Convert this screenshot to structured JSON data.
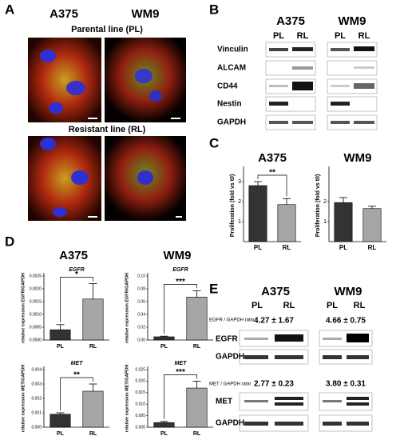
{
  "panels": {
    "A": {
      "label": "A",
      "cell_lines": [
        "A375",
        "WM9"
      ],
      "rows": [
        "Parental line (PL)",
        "Resistant line (RL)"
      ]
    },
    "B": {
      "label": "B",
      "cell_lines": [
        "A375",
        "WM9"
      ],
      "lanes": [
        "PL",
        "RL",
        "PL",
        "RL"
      ],
      "proteins": [
        "Vinculin",
        "ALCAM",
        "CD44",
        "Nestin",
        "GAPDH"
      ]
    },
    "C": {
      "label": "C"
    },
    "D": {
      "label": "D",
      "titles": [
        "A375",
        "WM9"
      ]
    },
    "E": {
      "label": "E",
      "cell_lines": [
        "A375",
        "WM9"
      ],
      "lanes": [
        "PL",
        "RL",
        "PL",
        "RL"
      ],
      "ratios": [
        {
          "label": "EGFR / GAPDH ratio",
          "values": [
            "4.27 ± 1.67",
            "4.66 ± 0.75"
          ]
        },
        {
          "label": "MET / GAPDH ratio",
          "values": [
            "2.77 ± 0.23",
            "3.80 ± 0.31"
          ]
        }
      ],
      "proteins": [
        "EGFR",
        "GAPDH",
        "MET",
        "GAPDH"
      ]
    }
  },
  "chart_data": [
    {
      "type": "bar",
      "title": "A375",
      "ylabel": "Proliferation (fold vs t0)",
      "categories": [
        "PL",
        "RL"
      ],
      "values": [
        2.8,
        1.85
      ],
      "errors": [
        0.2,
        0.3
      ],
      "colors": [
        "#333333",
        "#a6a6a6"
      ],
      "ylim": [
        0,
        3.6
      ],
      "yticks": [
        1,
        2,
        3
      ],
      "annotation": "**"
    },
    {
      "type": "bar",
      "title": "WM9",
      "ylabel": "Proliferation (fold vs t0)",
      "categories": [
        "PL",
        "RL"
      ],
      "values": [
        1.95,
        1.65
      ],
      "errors": [
        0.25,
        0.12
      ],
      "colors": [
        "#333333",
        "#a6a6a6"
      ],
      "ylim": [
        0,
        3.6
      ],
      "yticks": [
        1,
        2
      ]
    },
    {
      "type": "bar",
      "title": "EGFR",
      "ylabel": "relative expression EGFR/GAPDH",
      "categories": [
        "PL",
        "RL"
      ],
      "values": [
        0.0004,
        0.0016
      ],
      "errors": [
        0.0002,
        0.0006
      ],
      "colors": [
        "#333333",
        "#a6a6a6"
      ],
      "ylim": [
        0,
        0.0025
      ],
      "yticks": [
        {
          "value": 0,
          "label": "0.0000"
        },
        {
          "value": 0.0005,
          "label": "0.0005"
        },
        {
          "value": 0.001,
          "label": "0.0010"
        },
        {
          "value": 0.0015,
          "label": "0.0015"
        },
        {
          "value": 0.002,
          "label": "0.0020"
        },
        {
          "value": 0.0025,
          "label": "0.0025"
        }
      ],
      "annotation": "*"
    },
    {
      "type": "bar",
      "title": "EGFR",
      "ylabel": "relative expression EGFR/GAPDH",
      "categories": [
        "PL",
        "RL"
      ],
      "values": [
        0.005,
        0.067
      ],
      "errors": [
        0.001,
        0.01
      ],
      "colors": [
        "#333333",
        "#a6a6a6"
      ],
      "ylim": [
        0,
        0.1
      ],
      "yticks": [
        {
          "value": 0,
          "label": "0.00"
        },
        {
          "value": 0.02,
          "label": "0.02"
        },
        {
          "value": 0.04,
          "label": "0.04"
        },
        {
          "value": 0.06,
          "label": "0.06"
        },
        {
          "value": 0.08,
          "label": "0.08"
        },
        {
          "value": 0.1,
          "label": "0.10"
        }
      ],
      "annotation": "***"
    },
    {
      "type": "bar",
      "title": "MET",
      "ylabel": "relative expression MET/GAPDH",
      "categories": [
        "PL",
        "RL"
      ],
      "values": [
        0.0009,
        0.0025
      ],
      "errors": [
        0.0001,
        0.0005
      ],
      "colors": [
        "#333333",
        "#a6a6a6"
      ],
      "ylim": [
        0,
        0.004
      ],
      "yticks": [
        {
          "value": 0,
          "label": "0.000"
        },
        {
          "value": 0.001,
          "label": "0.001"
        },
        {
          "value": 0.002,
          "label": "0.002"
        },
        {
          "value": 0.003,
          "label": "0.003"
        },
        {
          "value": 0.004,
          "label": "0.004"
        }
      ],
      "annotation": "**"
    },
    {
      "type": "bar",
      "title": "MET",
      "ylabel": "relative expression MET/GAPDH",
      "categories": [
        "PL",
        "RL"
      ],
      "values": [
        0.002,
        0.017
      ],
      "errors": [
        0.0005,
        0.003
      ],
      "colors": [
        "#333333",
        "#a6a6a6"
      ],
      "ylim": [
        0,
        0.025
      ],
      "yticks": [
        {
          "value": 0,
          "label": "0.000"
        },
        {
          "value": 0.005,
          "label": "0.005"
        },
        {
          "value": 0.01,
          "label": "0.010"
        },
        {
          "value": 0.015,
          "label": "0.015"
        },
        {
          "value": 0.02,
          "label": "0.020"
        },
        {
          "value": 0.025,
          "label": "0.025"
        }
      ],
      "annotation": "***"
    }
  ]
}
